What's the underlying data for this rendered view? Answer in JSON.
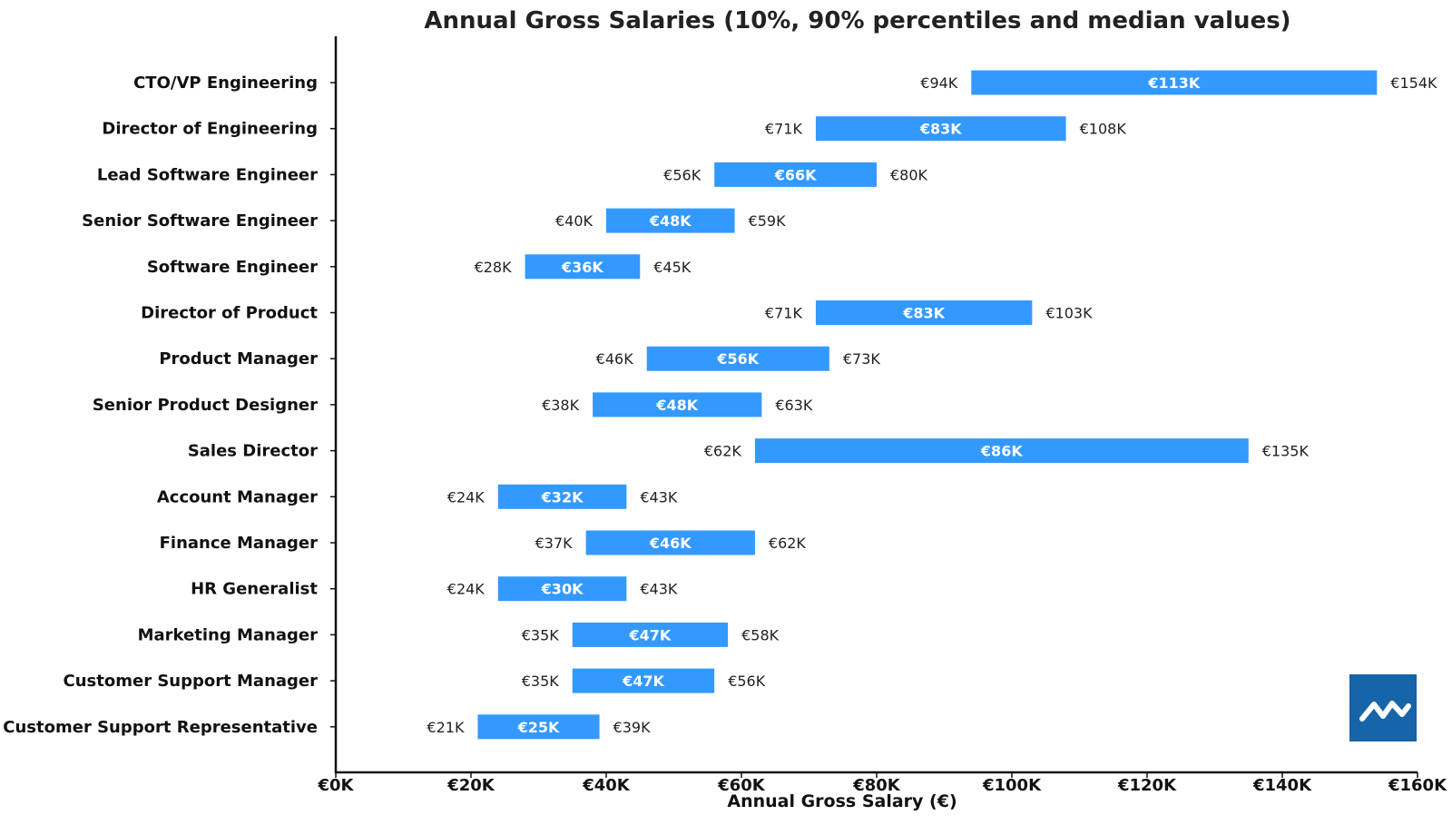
{
  "chart_data": {
    "type": "bar",
    "orientation": "horizontal-range",
    "title": "Annual Gross Salaries (10%, 90% percentiles and median values)",
    "xlabel": "Annual Gross Salary (€)",
    "ylabel": "",
    "xlim": [
      0,
      160000
    ],
    "x_ticks": [
      {
        "value": 0,
        "label": "€0K"
      },
      {
        "value": 20000,
        "label": "€20K"
      },
      {
        "value": 40000,
        "label": "€40K"
      },
      {
        "value": 60000,
        "label": "€60K"
      },
      {
        "value": 80000,
        "label": "€80K"
      },
      {
        "value": 100000,
        "label": "€100K"
      },
      {
        "value": 120000,
        "label": "€120K"
      },
      {
        "value": 140000,
        "label": "€140K"
      },
      {
        "value": 160000,
        "label": "€160K"
      }
    ],
    "grid": false,
    "bar_color": "#3399ff",
    "rows": [
      {
        "category": "CTO/VP Engineering",
        "p10": 94000,
        "p90": 154000,
        "p10_label": "€94K",
        "median_label": "€113K",
        "p90_label": "€154K"
      },
      {
        "category": "Director of Engineering",
        "p10": 71000,
        "p90": 108000,
        "p10_label": "€71K",
        "median_label": "€83K",
        "p90_label": "€108K"
      },
      {
        "category": "Lead Software Engineer",
        "p10": 56000,
        "p90": 80000,
        "p10_label": "€56K",
        "median_label": "€66K",
        "p90_label": "€80K"
      },
      {
        "category": "Senior Software Engineer",
        "p10": 40000,
        "p90": 59000,
        "p10_label": "€40K",
        "median_label": "€48K",
        "p90_label": "€59K"
      },
      {
        "category": "Software Engineer",
        "p10": 28000,
        "p90": 45000,
        "p10_label": "€28K",
        "median_label": "€36K",
        "p90_label": "€45K"
      },
      {
        "category": "Director of Product",
        "p10": 71000,
        "p90": 103000,
        "p10_label": "€71K",
        "median_label": "€83K",
        "p90_label": "€103K"
      },
      {
        "category": "Product Manager",
        "p10": 46000,
        "p90": 73000,
        "p10_label": "€46K",
        "median_label": "€56K",
        "p90_label": "€73K"
      },
      {
        "category": "Senior Product Designer",
        "p10": 38000,
        "p90": 63000,
        "p10_label": "€38K",
        "median_label": "€48K",
        "p90_label": "€63K"
      },
      {
        "category": "Sales Director",
        "p10": 62000,
        "p90": 135000,
        "p10_label": "€62K",
        "median_label": "€86K",
        "p90_label": "€135K"
      },
      {
        "category": "Account Manager",
        "p10": 24000,
        "p90": 43000,
        "p10_label": "€24K",
        "median_label": "€32K",
        "p90_label": "€43K"
      },
      {
        "category": "Finance Manager",
        "p10": 37000,
        "p90": 62000,
        "p10_label": "€37K",
        "median_label": "€46K",
        "p90_label": "€62K"
      },
      {
        "category": "HR Generalist",
        "p10": 24000,
        "p90": 43000,
        "p10_label": "€24K",
        "median_label": "€30K",
        "p90_label": "€43K"
      },
      {
        "category": "Marketing Manager",
        "p10": 35000,
        "p90": 58000,
        "p10_label": "€35K",
        "median_label": "€47K",
        "p90_label": "€58K"
      },
      {
        "category": "Customer Support Manager",
        "p10": 35000,
        "p90": 56000,
        "p10_label": "€35K",
        "median_label": "€47K",
        "p90_label": "€56K"
      },
      {
        "category": "Customer Support Representative",
        "p10": 21000,
        "p90": 39000,
        "p10_label": "€21K",
        "median_label": "€25K",
        "p90_label": "€39K"
      }
    ]
  },
  "logo": {
    "icon": "zigzag-line-icon",
    "color": "#1565a8"
  }
}
